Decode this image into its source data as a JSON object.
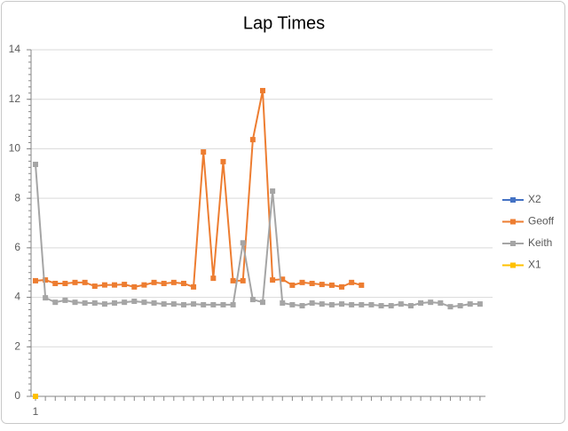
{
  "chart_data": {
    "type": "line",
    "title": "Lap Times",
    "categories": [
      "1",
      null,
      null,
      null,
      null,
      null,
      null,
      null,
      null,
      null,
      null,
      null,
      null,
      null,
      null,
      null,
      null,
      null,
      null,
      null,
      null,
      null,
      null,
      null,
      null,
      null,
      null,
      null,
      null,
      null,
      null,
      null,
      null,
      null,
      null,
      null,
      null,
      null,
      null,
      null,
      null,
      null,
      null,
      null,
      null,
      null
    ],
    "series": [
      {
        "name": "X2",
        "color": "#4472c4",
        "values": [
          0,
          null,
          null,
          null,
          null,
          null,
          null,
          null,
          null,
          null,
          null,
          null,
          null,
          null,
          null,
          null,
          null,
          null,
          null,
          null,
          null,
          null,
          null,
          null,
          null,
          null,
          null,
          null,
          null,
          null,
          null,
          null,
          null,
          null,
          null,
          null,
          null,
          null,
          null,
          null,
          null,
          null,
          null,
          null,
          null,
          null
        ]
      },
      {
        "name": "Geoff",
        "color": "#ed7d31",
        "values": [
          4.67,
          4.7,
          4.56,
          4.56,
          4.6,
          4.6,
          4.45,
          4.5,
          4.5,
          4.52,
          4.42,
          4.5,
          4.6,
          4.56,
          4.6,
          4.56,
          4.42,
          9.87,
          4.77,
          9.48,
          4.67,
          4.67,
          10.37,
          12.35,
          4.7,
          4.73,
          4.49,
          4.6,
          4.56,
          4.52,
          4.49,
          4.42,
          4.6,
          4.49,
          null,
          null,
          null,
          null,
          null,
          null,
          null,
          null,
          null,
          null,
          null,
          null
        ]
      },
      {
        "name": "Keith",
        "color": "#a5a5a5",
        "values": [
          9.37,
          3.98,
          3.8,
          3.88,
          3.8,
          3.77,
          3.77,
          3.73,
          3.77,
          3.8,
          3.84,
          3.8,
          3.77,
          3.73,
          3.73,
          3.7,
          3.73,
          3.7,
          3.7,
          3.7,
          3.7,
          6.2,
          3.91,
          3.8,
          8.29,
          3.77,
          3.7,
          3.66,
          3.77,
          3.73,
          3.7,
          3.73,
          3.7,
          3.7,
          3.7,
          3.66,
          3.66,
          3.73,
          3.66,
          3.77,
          3.8,
          3.77,
          3.62,
          3.66,
          3.73,
          3.73
        ]
      },
      {
        "name": "X1",
        "color": "#ffc000",
        "values": [
          0,
          null,
          null,
          null,
          null,
          null,
          null,
          null,
          null,
          null,
          null,
          null,
          null,
          null,
          null,
          null,
          null,
          null,
          null,
          null,
          null,
          null,
          null,
          null,
          null,
          null,
          null,
          null,
          null,
          null,
          null,
          null,
          null,
          null,
          null,
          null,
          null,
          null,
          null,
          null,
          null,
          null,
          null,
          null,
          null,
          null
        ]
      }
    ],
    "ylim": [
      0,
      14
    ],
    "yticks": [
      0,
      2,
      4,
      6,
      8,
      10,
      12,
      14
    ],
    "grid": true,
    "legend": "right"
  }
}
